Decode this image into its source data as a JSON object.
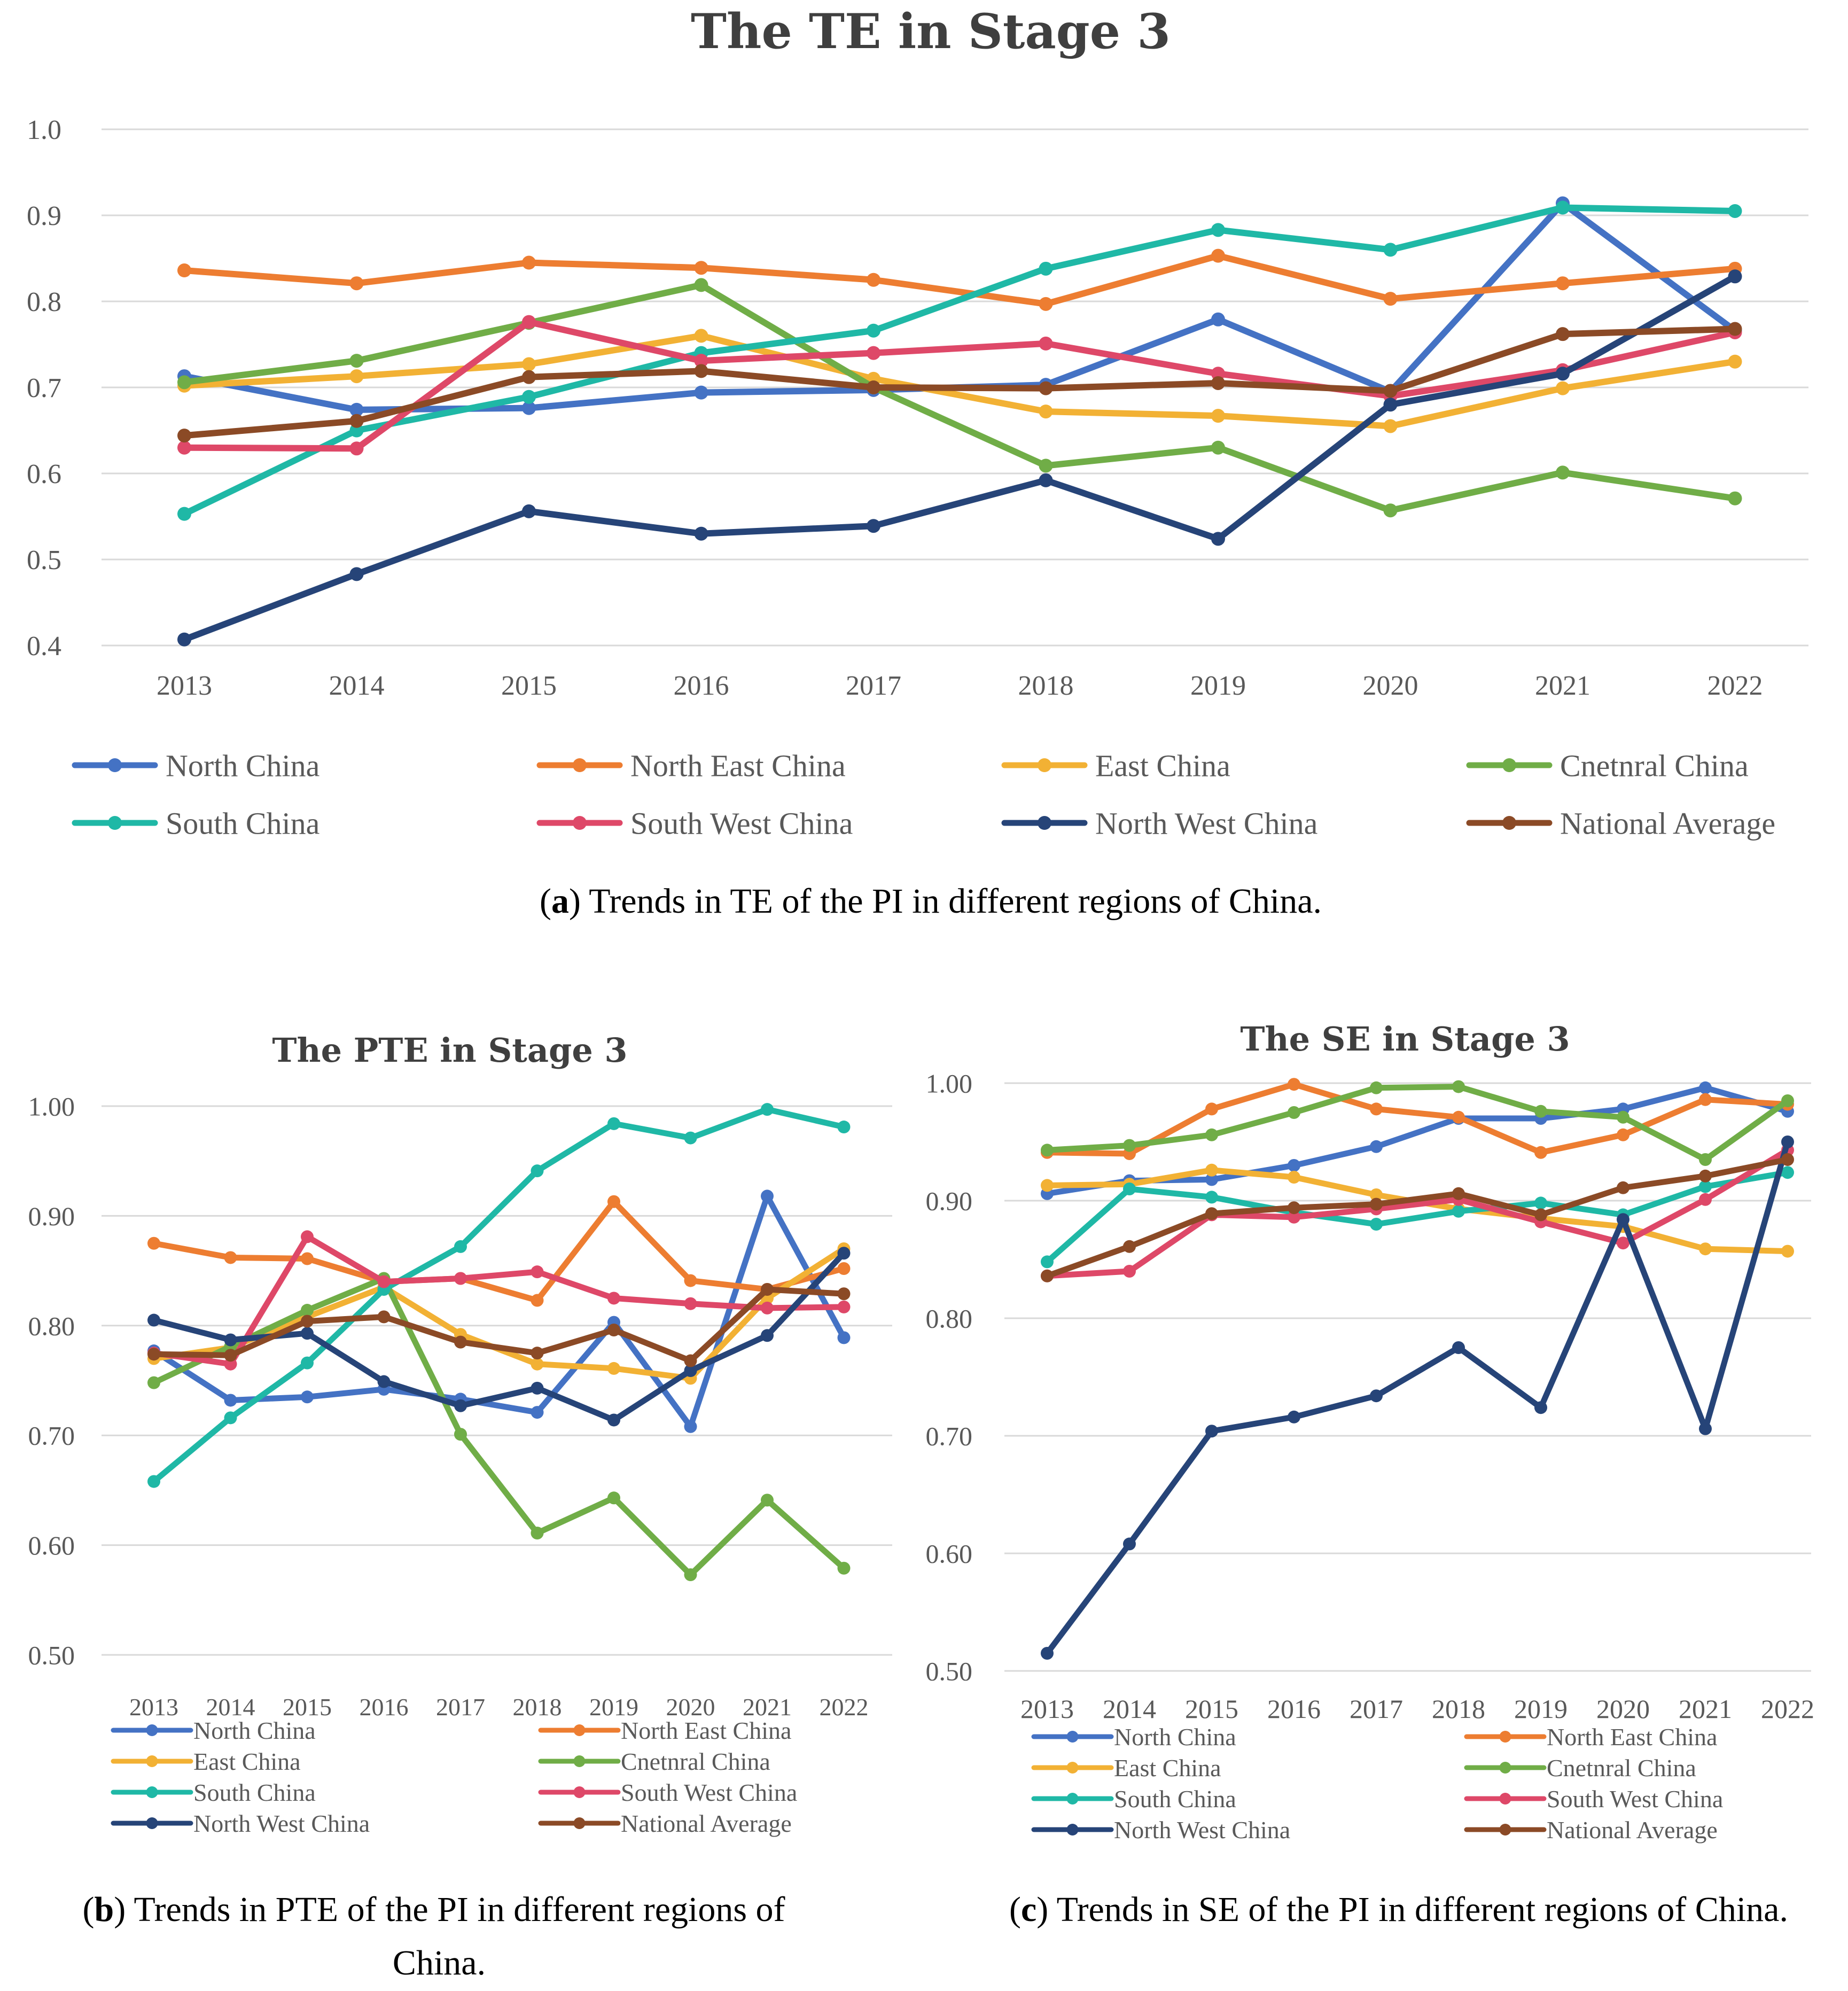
{
  "colors": {
    "North China": "#4472C4",
    "North East China": "#ED7D31",
    "East China": "#F2B134",
    "Cnetnral China": "#70AD47",
    "South China": "#1FB8A6",
    "South West China": "#DE4868",
    "North West China": "#264478",
    "National Average": "#8B4A26"
  },
  "legend_order": [
    "North China",
    "North East China",
    "East China",
    "Cnetnral China",
    "South China",
    "South West China",
    "North West China",
    "National Average"
  ],
  "captions": {
    "a_label": "a",
    "a_text": ") Trends in TE of the PI in different regions of China.",
    "b_label": "b",
    "b_text_line1": ") Trends in PTE of the PI in different regions of",
    "b_text_line2": "China.",
    "c_label": "c",
    "c_text": ") Trends in SE of the PI in different regions of China."
  },
  "chart_data": [
    {
      "id": "a",
      "type": "line",
      "title": "The TE in Stage 3",
      "xlabel": "",
      "ylabel": "",
      "categories": [
        "2013",
        "2014",
        "2015",
        "2016",
        "2017",
        "2018",
        "2019",
        "2020",
        "2021",
        "2022"
      ],
      "ylim": [
        0.4,
        1.0
      ],
      "yticks": [
        0.4,
        0.5,
        0.6,
        0.7,
        0.8,
        0.9,
        1.0
      ],
      "ytick_labels": [
        "0.4",
        "0.5",
        "0.6",
        "0.7",
        "0.8",
        "0.9",
        "1.0"
      ],
      "legend_position": "bottom",
      "series": [
        {
          "name": "North China",
          "values": [
            0.713,
            0.674,
            0.676,
            0.694,
            0.697,
            0.703,
            0.779,
            0.695,
            0.914,
            0.766
          ]
        },
        {
          "name": "North East China",
          "values": [
            0.836,
            0.821,
            0.845,
            0.839,
            0.825,
            0.797,
            0.853,
            0.803,
            0.821,
            0.838
          ]
        },
        {
          "name": "East China",
          "values": [
            0.702,
            0.713,
            0.727,
            0.76,
            0.71,
            0.672,
            0.667,
            0.655,
            0.699,
            0.73
          ]
        },
        {
          "name": "Cnetnral China",
          "values": [
            0.706,
            0.731,
            0.775,
            0.819,
            0.7,
            0.609,
            0.63,
            0.557,
            0.601,
            0.571
          ]
        },
        {
          "name": "South China",
          "values": [
            0.553,
            0.65,
            0.689,
            0.74,
            0.766,
            0.838,
            0.883,
            0.86,
            0.909,
            0.905
          ]
        },
        {
          "name": "South West China",
          "values": [
            0.63,
            0.629,
            0.776,
            0.731,
            0.74,
            0.751,
            0.716,
            0.69,
            0.72,
            0.764
          ]
        },
        {
          "name": "North West China",
          "values": [
            0.407,
            0.483,
            0.556,
            0.53,
            0.539,
            0.592,
            0.524,
            0.68,
            0.716,
            0.829
          ]
        },
        {
          "name": "National Average",
          "values": [
            0.644,
            0.661,
            0.712,
            0.719,
            0.7,
            0.699,
            0.705,
            0.696,
            0.762,
            0.768
          ]
        }
      ]
    },
    {
      "id": "b",
      "type": "line",
      "title": "The PTE in Stage 3",
      "xlabel": "",
      "ylabel": "",
      "categories": [
        "2013",
        "2014",
        "2015",
        "2016",
        "2017",
        "2018",
        "2019",
        "2020",
        "2021",
        "2022"
      ],
      "ylim": [
        0.5,
        1.0
      ],
      "yticks": [
        0.5,
        0.6,
        0.7,
        0.8,
        0.9,
        1.0
      ],
      "ytick_labels": [
        "0.50",
        "0.60",
        "0.70",
        "0.80",
        "0.90",
        "1.00"
      ],
      "legend_position": "bottom",
      "series": [
        {
          "name": "North China",
          "values": [
            0.777,
            0.732,
            0.735,
            0.742,
            0.733,
            0.721,
            0.803,
            0.708,
            0.918,
            0.789
          ]
        },
        {
          "name": "North East China",
          "values": [
            0.875,
            0.862,
            0.861,
            0.84,
            0.843,
            0.823,
            0.913,
            0.841,
            0.833,
            0.852
          ]
        },
        {
          "name": "East China",
          "values": [
            0.77,
            0.78,
            0.808,
            0.835,
            0.792,
            0.765,
            0.761,
            0.752,
            0.825,
            0.87
          ]
        },
        {
          "name": "Cnetnral China",
          "values": [
            0.748,
            0.781,
            0.814,
            0.843,
            0.701,
            0.611,
            0.643,
            0.573,
            0.641,
            0.579
          ]
        },
        {
          "name": "South China",
          "values": [
            0.658,
            0.716,
            0.766,
            0.833,
            0.872,
            0.941,
            0.984,
            0.971,
            0.997,
            0.981
          ]
        },
        {
          "name": "South West China",
          "values": [
            0.775,
            0.765,
            0.881,
            0.84,
            0.843,
            0.849,
            0.825,
            0.82,
            0.816,
            0.817
          ]
        },
        {
          "name": "North West China",
          "values": [
            0.805,
            0.787,
            0.793,
            0.749,
            0.727,
            0.743,
            0.714,
            0.759,
            0.791,
            0.866
          ]
        },
        {
          "name": "National Average",
          "values": [
            0.774,
            0.773,
            0.804,
            0.808,
            0.785,
            0.775,
            0.796,
            0.768,
            0.833,
            0.829
          ]
        }
      ]
    },
    {
      "id": "c",
      "type": "line",
      "title": "The SE in Stage 3",
      "xlabel": "",
      "ylabel": "",
      "categories": [
        "2013",
        "2014",
        "2015",
        "2016",
        "2017",
        "2018",
        "2019",
        "2020",
        "2021",
        "2022"
      ],
      "ylim": [
        0.5,
        1.0
      ],
      "yticks": [
        0.5,
        0.6,
        0.7,
        0.8,
        0.9,
        1.0
      ],
      "ytick_labels": [
        "0.50",
        "0.60",
        "0.70",
        "0.80",
        "0.90",
        "1.00"
      ],
      "legend_position": "bottom",
      "series": [
        {
          "name": "North China",
          "values": [
            0.906,
            0.917,
            0.918,
            0.93,
            0.946,
            0.97,
            0.97,
            0.978,
            0.996,
            0.976
          ]
        },
        {
          "name": "North East China",
          "values": [
            0.941,
            0.94,
            0.978,
            0.999,
            0.978,
            0.971,
            0.941,
            0.956,
            0.986,
            0.982
          ]
        },
        {
          "name": "East China",
          "values": [
            0.913,
            0.914,
            0.926,
            0.92,
            0.905,
            0.893,
            0.885,
            0.878,
            0.859,
            0.857
          ]
        },
        {
          "name": "Cnetnral China",
          "values": [
            0.943,
            0.947,
            0.956,
            0.975,
            0.996,
            0.997,
            0.976,
            0.971,
            0.935,
            0.985
          ]
        },
        {
          "name": "South China",
          "values": [
            0.848,
            0.91,
            0.903,
            0.89,
            0.88,
            0.891,
            0.898,
            0.888,
            0.912,
            0.924
          ]
        },
        {
          "name": "South West China",
          "values": [
            0.836,
            0.84,
            0.888,
            0.886,
            0.893,
            0.901,
            0.882,
            0.864,
            0.901,
            0.943
          ]
        },
        {
          "name": "North West China",
          "values": [
            0.515,
            0.608,
            0.704,
            0.716,
            0.734,
            0.775,
            0.724,
            0.884,
            0.706,
            0.95
          ]
        },
        {
          "name": "National Average",
          "values": [
            0.836,
            0.861,
            0.889,
            0.894,
            0.897,
            0.906,
            0.888,
            0.911,
            0.921,
            0.935
          ]
        }
      ]
    }
  ]
}
